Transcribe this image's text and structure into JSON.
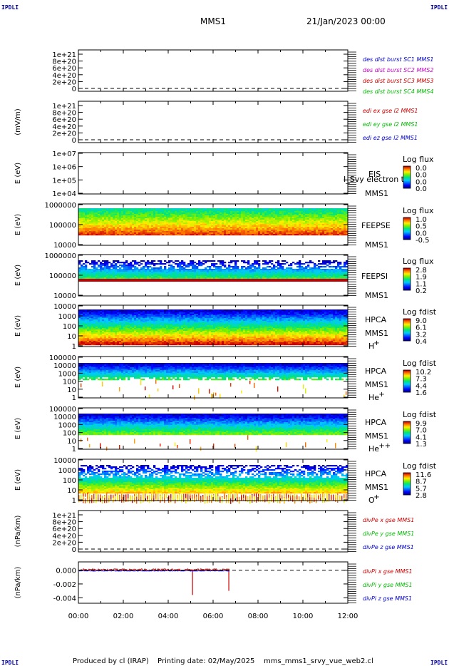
{
  "header": {
    "corner_left_top": "IPDLI",
    "corner_right_top": "IPDLI",
    "corner_left_bottom": "IPDLI",
    "corner_right_bottom": "IPDLI",
    "mission": "MMS1",
    "date": "21/Jan/2023 00:00"
  },
  "footer": {
    "produced": "Produced by cl (IRAP)",
    "printing": "Printing date: 02/May/2025",
    "script": "mms_mms1_srvy_vue_web2.cl"
  },
  "colors": {
    "black": "#000000",
    "blue": "#0000cc",
    "magenta": "#cc00cc",
    "red": "#cc0000",
    "green": "#00bb00"
  },
  "chart_data": [
    {
      "type": "line",
      "panel": 1,
      "ylabel": "",
      "yticks": [
        "1e+21",
        "8e+20",
        "6e+20",
        "4e+20",
        "2e+20",
        "0"
      ],
      "dashed_zero": true,
      "legend": [
        {
          "text": "des dist burst SC1 MMS1",
          "color": "#0000cc"
        },
        {
          "text": "des dist burst SC2 MMS2",
          "color": "#cc00cc"
        },
        {
          "text": "des dist burst SC3 MMS3",
          "color": "#cc0000"
        },
        {
          "text": "des dist burst SC4 MMS4",
          "color": "#00bb00"
        }
      ],
      "series": []
    },
    {
      "type": "line",
      "panel": 2,
      "ylabel": "(mV/m)",
      "yticks": [
        "1e+21",
        "8e+20",
        "6e+20",
        "4e+20",
        "2e+20",
        "0"
      ],
      "dashed_zero": true,
      "legend": [
        {
          "text": "edi ex gse l2 MMS1",
          "color": "#cc0000"
        },
        {
          "text": "edi ey gse l2 MMS1",
          "color": "#00bb00"
        },
        {
          "text": "edi ez gse l2 MMS1",
          "color": "#0000cc"
        }
      ],
      "series": []
    },
    {
      "type": "heatmap",
      "panel": 3,
      "ylabel": "E (eV)",
      "yticks": [
        "1e+07",
        "1e+06",
        "1e+05",
        "1e+04"
      ],
      "instrument": "EIS",
      "spacecraft": "MMS1",
      "overlay_text": "I_Svy electron to",
      "colorbar_title": "Log flux",
      "colorbar_ticks": [
        "0.0",
        "0.0",
        "0.0",
        "0.0"
      ],
      "data_present": false
    },
    {
      "type": "heatmap",
      "panel": 4,
      "ylabel": "E (eV)",
      "yticks": [
        "1000000",
        "100000",
        "10000"
      ],
      "instrument": "FEEPSE",
      "spacecraft": "MMS1",
      "colorbar_title": "Log flux",
      "colorbar_ticks": [
        "1.0",
        "0.5",
        "0.0",
        "-0.5"
      ],
      "data_present": true
    },
    {
      "type": "heatmap",
      "panel": 5,
      "ylabel": "E (eV)",
      "yticks": [
        "1000000",
        "100000",
        "10000"
      ],
      "instrument": "FEEPSI",
      "spacecraft": "MMS1",
      "colorbar_title": "Log flux",
      "colorbar_ticks": [
        "2.8",
        "1.9",
        "1.1",
        "0.2"
      ],
      "data_present": true
    },
    {
      "type": "heatmap",
      "panel": 6,
      "ylabel": "E (eV)",
      "yticks": [
        "10000",
        "1000",
        "100",
        "10",
        "1"
      ],
      "instrument": "HPCA",
      "spacecraft": "MMS1",
      "species": "H",
      "species_sup": "+",
      "colorbar_title": "Log fdist",
      "colorbar_ticks": [
        "9.0",
        "6.1",
        "3.2",
        "0.4"
      ],
      "data_present": true
    },
    {
      "type": "heatmap",
      "panel": 7,
      "ylabel": "E (eV)",
      "yticks": [
        "100000",
        "10000",
        "1000",
        "100",
        "10",
        "1"
      ],
      "instrument": "HPCA",
      "spacecraft": "MMS1",
      "species": "He",
      "species_sup": "+",
      "colorbar_title": "Log fdist",
      "colorbar_ticks": [
        "10.2",
        "7.3",
        "4.4",
        "1.6"
      ],
      "data_present": true
    },
    {
      "type": "heatmap",
      "panel": 8,
      "ylabel": "E (eV)",
      "yticks": [
        "100000",
        "10000",
        "1000",
        "100",
        "10",
        "1"
      ],
      "instrument": "HPCA",
      "spacecraft": "MMS1",
      "species": "He",
      "species_sup": "++",
      "colorbar_title": "Log fdist",
      "colorbar_ticks": [
        "9.9",
        "7.0",
        "4.1",
        "1.3"
      ],
      "data_present": true
    },
    {
      "type": "heatmap",
      "panel": 9,
      "ylabel": "E (eV)",
      "yticks": [
        "10000",
        "1000",
        "100",
        "10",
        "1"
      ],
      "instrument": "HPCA",
      "spacecraft": "MMS1",
      "species": "O",
      "species_sup": "+",
      "colorbar_title": "Log fdist",
      "colorbar_ticks": [
        "11.6",
        "8.7",
        "5.7",
        "2.8"
      ],
      "data_present": true
    },
    {
      "type": "line",
      "panel": 10,
      "ylabel": "(nPa/km)",
      "yticks": [
        "1e+21",
        "8e+20",
        "6e+20",
        "4e+20",
        "2e+20",
        "0"
      ],
      "dashed_zero": true,
      "legend": [
        {
          "text": "divPe x gse MMS1",
          "color": "#cc0000"
        },
        {
          "text": "divPe y gse MMS1",
          "color": "#00bb00"
        },
        {
          "text": "divPe z gse MMS1",
          "color": "#0000cc"
        }
      ],
      "series": []
    },
    {
      "type": "line",
      "panel": 11,
      "ylabel": "(nPa/km)",
      "yticks": [
        "0.000",
        "-0.002",
        "-0.004"
      ],
      "ylim": [
        -0.0048,
        0.0012
      ],
      "dashed_zero": true,
      "x_data_end": "06:45",
      "legend": [
        {
          "text": "divPi x gse MMS1",
          "color": "#cc0000"
        },
        {
          "text": "divPi y gse MMS1",
          "color": "#00bb00"
        },
        {
          "text": "divPi z gse MMS1",
          "color": "#0000cc"
        }
      ],
      "series": [
        {
          "name": "divPi x gse MMS1",
          "color": "#cc0000",
          "base": 5e-05,
          "noise": 0.00015,
          "spikes": [
            {
              "x": "05:05",
              "y": -0.0036
            },
            {
              "x": "06:42",
              "y": -0.003
            }
          ]
        },
        {
          "name": "divPi z gse MMS1",
          "color": "#0000cc",
          "base": -0.0001,
          "noise": 4e-05,
          "spikes": []
        }
      ]
    }
  ],
  "x_axis": {
    "tick_labels": [
      "00:00",
      "02:00",
      "04:00",
      "06:00",
      "08:00",
      "10:00",
      "12:00"
    ],
    "range_hours": [
      0,
      12
    ]
  }
}
